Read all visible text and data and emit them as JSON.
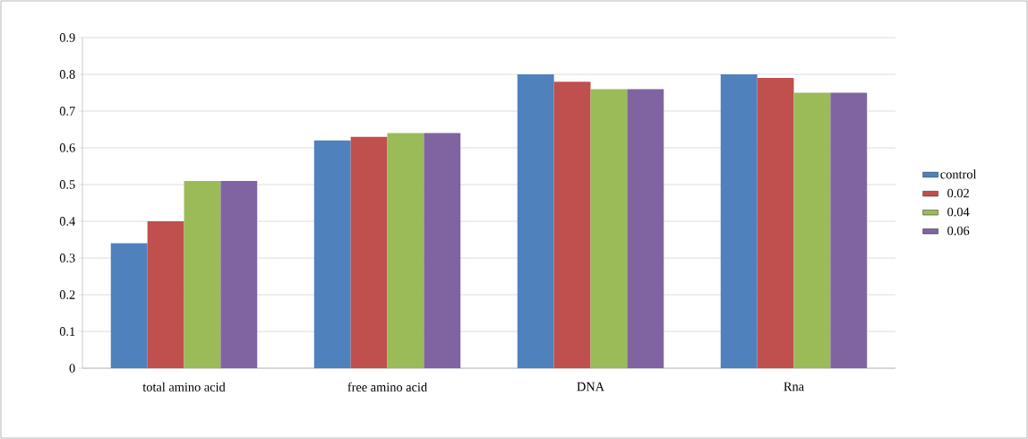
{
  "chart_data": {
    "type": "bar",
    "categories": [
      "total amino acid",
      "free amino acid",
      "DNA",
      "Rna"
    ],
    "series": [
      {
        "name": "control",
        "color": "#4f81bd",
        "values": [
          0.34,
          0.62,
          0.8,
          0.8
        ]
      },
      {
        "name": "0.02",
        "color": "#c0504d",
        "values": [
          0.4,
          0.63,
          0.78,
          0.79
        ]
      },
      {
        "name": "0.04",
        "color": "#9bbb59",
        "values": [
          0.51,
          0.64,
          0.76,
          0.75
        ]
      },
      {
        "name": "0.06",
        "color": "#8064a2",
        "values": [
          0.51,
          0.64,
          0.76,
          0.75
        ]
      }
    ],
    "ylim": [
      0,
      0.9
    ],
    "yticks": [
      0,
      0.1,
      0.2,
      0.3,
      0.4,
      0.5,
      0.6,
      0.7,
      0.8,
      0.9
    ],
    "grid": "y",
    "legend": "right"
  }
}
